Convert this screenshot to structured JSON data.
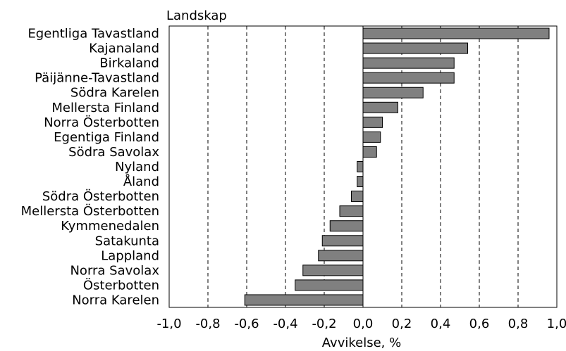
{
  "chart_data": {
    "type": "bar",
    "orientation": "horizontal",
    "category_axis_label": "Landskap",
    "xlabel": "Avvikelse, %",
    "xlim": [
      -1.0,
      1.0
    ],
    "xticks": [
      "-1,0",
      "-0,8",
      "-0,6",
      "-0,4",
      "-0,2",
      "0,0",
      "0,2",
      "0,4",
      "0,6",
      "0,8",
      "1,0"
    ],
    "grid": "vertical dashed at ticks",
    "bar_color": "#808080",
    "categories": [
      "Egentliga Tavastland",
      "Kajanaland",
      "Birkaland",
      "Päijänne-Tavastland",
      "Södra Karelen",
      "Mellersta Finland",
      "Norra Österbotten",
      "Egentiga Finland",
      "Södra Savolax",
      "Nyland",
      "Åland",
      "Södra Österbotten",
      "Mellersta Österbotten",
      "Kymmenedalen",
      "Satakunta",
      "Lappland",
      "Norra Savolax",
      "Österbotten",
      "Norra Karelen"
    ],
    "values": [
      0.96,
      0.54,
      0.47,
      0.47,
      0.31,
      0.18,
      0.1,
      0.09,
      0.07,
      -0.03,
      -0.03,
      -0.06,
      -0.12,
      -0.17,
      -0.21,
      -0.23,
      -0.31,
      -0.35,
      -0.61
    ]
  }
}
